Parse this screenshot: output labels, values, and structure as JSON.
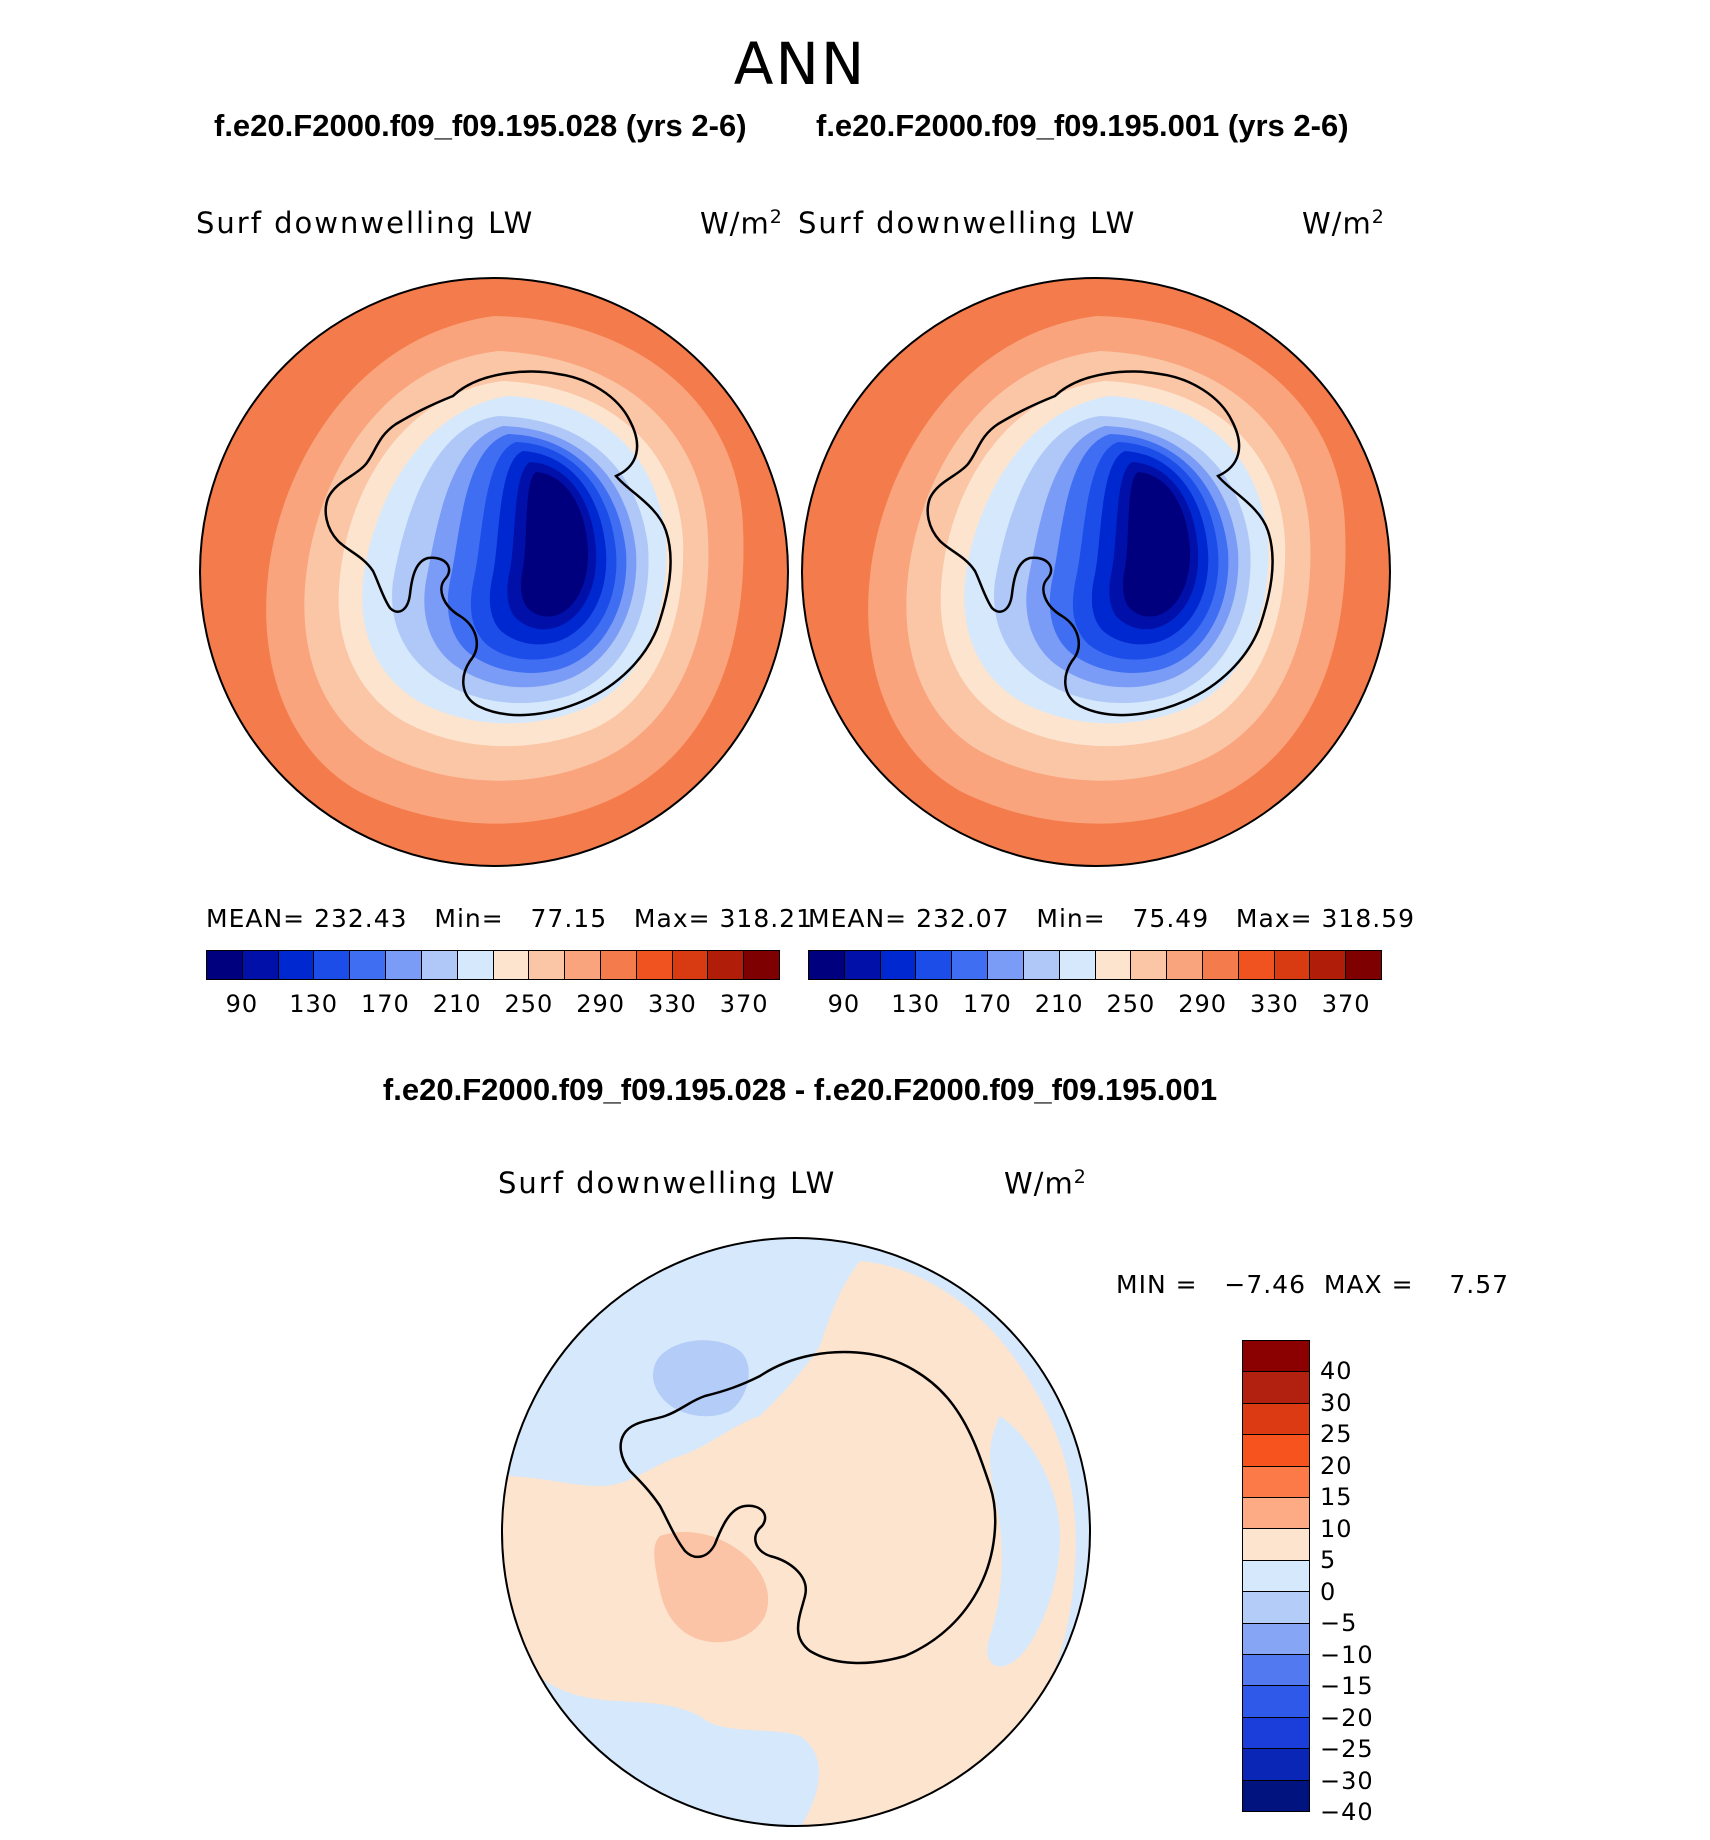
{
  "title": "ANN",
  "panels": [
    {
      "case_title": "f.e20.F2000.f09_f09.195.028 (yrs 2-6)",
      "var_label": "Surf downwelling LW",
      "unit_main": "W/m",
      "unit_exp": "2",
      "stats": "MEAN= 232.43   Min=   77.15   Max= 318.21"
    },
    {
      "case_title": "f.e20.F2000.f09_f09.195.001 (yrs 2-6)",
      "var_label": "Surf downwelling LW",
      "unit_main": "W/m",
      "unit_exp": "2",
      "stats": "MEAN= 232.07   Min=   75.49   Max= 318.59"
    }
  ],
  "colorbar": {
    "colors": [
      "#00007f",
      "#0010a8",
      "#0028d0",
      "#1c4de8",
      "#3f6ef2",
      "#7b9cf6",
      "#b0c8f8",
      "#d6e8fb",
      "#fde4cf",
      "#fbc6a6",
      "#f9a47c",
      "#f47b4c",
      "#f0531f",
      "#d83a12",
      "#b01e0a",
      "#7f0000"
    ],
    "ticks": [
      "90",
      "130",
      "170",
      "210",
      "250",
      "290",
      "330",
      "370"
    ]
  },
  "diff": {
    "title": "f.e20.F2000.f09_f09.195.028 - f.e20.F2000.f09_f09.195.001",
    "var_label": "Surf downwelling LW",
    "unit_main": "W/m",
    "unit_exp": "2",
    "stats": "MIN =   −7.46  MAX =    7.57",
    "colors": [
      "#8b0000",
      "#b22010",
      "#dc3a12",
      "#f7531f",
      "#fb7a48",
      "#fcab85",
      "#fde4cf",
      "#d6e8fb",
      "#b3ccf8",
      "#86a6f5",
      "#5279ef",
      "#2f59e8",
      "#1b3edb",
      "#0a26b6",
      "#00137f"
    ],
    "ticks": [
      "40",
      "30",
      "25",
      "20",
      "15",
      "10",
      "5",
      "0",
      "−5",
      "−10",
      "−15",
      "−20",
      "−25",
      "−30",
      "−40"
    ]
  },
  "map_colors": {
    "ocean_outer": "#f47b4c",
    "ring2": "#f9a47c",
    "ring3": "#fbc6a6",
    "ring4": "#fde4cf",
    "ice1": "#d6e8fb",
    "ice2": "#b0c8f8",
    "ice3": "#7b9cf6",
    "ice4": "#3f6ef2",
    "ice5": "#1c4de8",
    "ice6": "#0028d0",
    "ice7": "#0010a8",
    "ice8": "#00007f",
    "diff_pos": "#fde4cf",
    "diff_neg": "#d6e8fb",
    "diff_pos2": "#fcc4a6",
    "diff_neg2": "#b3ccf8"
  }
}
